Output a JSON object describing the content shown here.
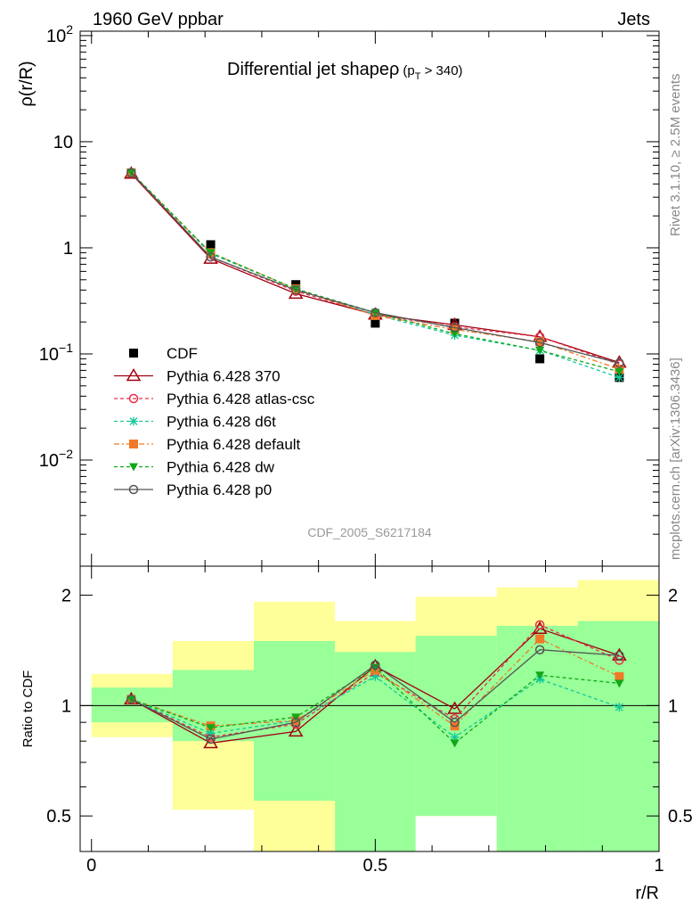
{
  "header": {
    "left": "1960 GeV ppbar",
    "right": "Jets"
  },
  "side_text": {
    "rivet": "Rivet 3.1.10, ≥ 2.5M events",
    "mcplots": "mcplots.cern.ch [arXiv:1306.3436]"
  },
  "analysis_id": "CDF_2005_S6217184",
  "chart_data": [
    {
      "type": "line",
      "title": "Differential jet shapeρ",
      "title_sub": "(p",
      "title_sub_index": "T",
      "title_sub_end": " > 340)",
      "ylabel": "ρ(r/R)",
      "xlabel": "",
      "y_scale": "log",
      "ylim": [
        0.001,
        110
      ],
      "xlim": [
        -0.02,
        1.0
      ],
      "y_ticks": [
        {
          "value": 100,
          "base": "10",
          "exp": "2"
        },
        {
          "value": 10,
          "base": "10",
          "exp": ""
        },
        {
          "value": 1,
          "base": "1",
          "exp": ""
        },
        {
          "value": 0.1,
          "base": "10",
          "exp": "−1"
        },
        {
          "value": 0.01,
          "base": "10",
          "exp": "−2"
        }
      ],
      "legend_position": "bottom-left",
      "x": [
        0.07,
        0.21,
        0.36,
        0.5,
        0.64,
        0.79,
        0.93
      ],
      "series": [
        {
          "name": "CDF",
          "color": "#000000",
          "marker": "square-filled",
          "dash": "none",
          "values": [
            5.0,
            1.07,
            0.45,
            0.195,
            0.195,
            0.09,
            0.06
          ]
        },
        {
          "name": "Pythia 6.428 370",
          "color": "#a00010",
          "marker": "triangle-open",
          "dash": "solid",
          "values": [
            5.0,
            0.79,
            0.37,
            0.235,
            0.188,
            0.145,
            0.083
          ]
        },
        {
          "name": "Pythia 6.428 atlas-csc",
          "color": "#e8304a",
          "marker": "circle-open",
          "dash": "4,3",
          "values": [
            5.05,
            0.82,
            0.39,
            0.235,
            0.18,
            0.145,
            0.08
          ]
        },
        {
          "name": "Pythia 6.428 d6t",
          "color": "#14c89a",
          "marker": "asterisk",
          "dash": "4,3",
          "values": [
            5.1,
            0.88,
            0.41,
            0.235,
            0.15,
            0.108,
            0.06
          ]
        },
        {
          "name": "Pythia 6.428 default",
          "color": "#f07828",
          "marker": "square-filled",
          "dash": "6,3,2,3",
          "values": [
            5.1,
            0.9,
            0.41,
            0.23,
            0.17,
            0.13,
            0.072
          ]
        },
        {
          "name": "Pythia 6.428 dw",
          "color": "#10a818",
          "marker": "triangle-down-filled",
          "dash": "4,3",
          "values": [
            5.15,
            0.9,
            0.41,
            0.245,
            0.155,
            0.108,
            0.068
          ]
        },
        {
          "name": "Pythia 6.428 p0",
          "color": "#555555",
          "marker": "circle-open",
          "dash": "solid",
          "values": [
            5.1,
            0.82,
            0.4,
            0.245,
            0.177,
            0.128,
            0.082
          ]
        }
      ]
    },
    {
      "type": "line",
      "title": "",
      "ylabel": "Ratio to CDF",
      "xlabel": "r/R",
      "y_scale": "log",
      "ylim": [
        0.4,
        2.4
      ],
      "xlim": [
        -0.02,
        1.0
      ],
      "y_ticks": [
        {
          "value": 2,
          "label": "2"
        },
        {
          "value": 1,
          "label": "1"
        },
        {
          "value": 0.5,
          "label": "0.5"
        }
      ],
      "x_ticks": [
        {
          "value": 0,
          "label": "0"
        },
        {
          "value": 0.5,
          "label": "0.5"
        },
        {
          "value": 1,
          "label": "1"
        }
      ],
      "reference_line": 1,
      "bands": [
        {
          "x0": 0.0,
          "x1": 0.143,
          "yellow": [
            0.82,
            1.22
          ],
          "green": [
            0.9,
            1.12
          ]
        },
        {
          "x0": 0.143,
          "x1": 0.286,
          "yellow": [
            0.52,
            1.5
          ],
          "green": [
            0.8,
            1.25
          ]
        },
        {
          "x0": 0.286,
          "x1": 0.429,
          "yellow": [
            0.38,
            1.92
          ],
          "green": [
            0.55,
            1.5
          ]
        },
        {
          "x0": 0.429,
          "x1": 0.571,
          "yellow": [
            0.72,
            1.7
          ],
          "green": [
            0.38,
            1.4
          ]
        },
        {
          "x0": 0.571,
          "x1": 0.714,
          "yellow": [
            0.5,
            1.98
          ],
          "green": [
            0.5,
            1.55
          ]
        },
        {
          "x0": 0.714,
          "x1": 0.857,
          "yellow": [
            0.38,
            2.1
          ],
          "green": [
            0.36,
            1.65
          ]
        },
        {
          "x0": 0.857,
          "x1": 1.0,
          "yellow": [
            0.36,
            2.2
          ],
          "green": [
            0.36,
            1.7
          ]
        }
      ],
      "x": [
        0.07,
        0.21,
        0.36,
        0.5,
        0.64,
        0.79,
        0.93
      ],
      "series": [
        {
          "name": "Pythia 6.428 370",
          "color": "#a00010",
          "marker": "triangle-open",
          "dash": "solid",
          "values": [
            1.04,
            0.79,
            0.85,
            1.28,
            0.98,
            1.62,
            1.37
          ]
        },
        {
          "name": "Pythia 6.428 atlas-csc",
          "color": "#e8304a",
          "marker": "circle-open",
          "dash": "4,3",
          "values": [
            1.04,
            0.82,
            0.89,
            1.23,
            0.92,
            1.66,
            1.33
          ]
        },
        {
          "name": "Pythia 6.428 d6t",
          "color": "#14c89a",
          "marker": "asterisk",
          "dash": "4,3",
          "values": [
            1.04,
            0.84,
            0.91,
            1.2,
            0.82,
            1.18,
            0.99
          ]
        },
        {
          "name": "Pythia 6.428 default",
          "color": "#f07828",
          "marker": "square-filled",
          "dash": "6,3,2,3",
          "values": [
            1.04,
            0.88,
            0.91,
            1.25,
            0.88,
            1.52,
            1.2
          ]
        },
        {
          "name": "Pythia 6.428 dw",
          "color": "#10a818",
          "marker": "triangle-down-filled",
          "dash": "4,3",
          "values": [
            1.04,
            0.87,
            0.93,
            1.27,
            0.79,
            1.21,
            1.15
          ]
        },
        {
          "name": "Pythia 6.428 p0",
          "color": "#555555",
          "marker": "circle-open",
          "dash": "solid",
          "values": [
            1.04,
            0.81,
            0.9,
            1.29,
            0.9,
            1.42,
            1.37
          ]
        }
      ]
    }
  ]
}
